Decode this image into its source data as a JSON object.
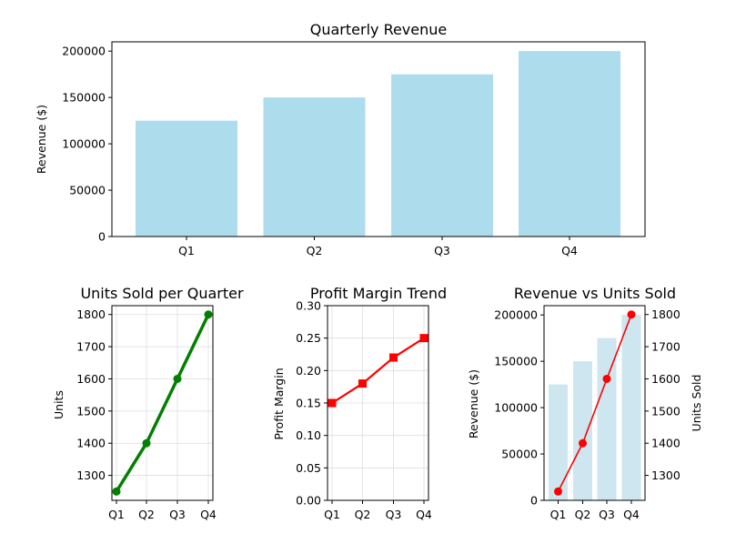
{
  "colors": {
    "bar_main": "#ADDDED",
    "bar_combo": "#CDE6EF",
    "units_line": "#008000",
    "margin_line": "#FF0000",
    "combo_line": "#FF0000",
    "left_axis_ticks": "#0000FF",
    "right_axis_label": "#FF0000",
    "grid": "#DDDDDD"
  },
  "chart_data": [
    {
      "id": "revenue",
      "type": "bar",
      "title": "Quarterly Revenue",
      "categories": [
        "Q1",
        "Q2",
        "Q3",
        "Q4"
      ],
      "values": [
        125000,
        150000,
        175000,
        200000
      ],
      "ylabel": "Revenue ($)",
      "xlabel": "",
      "ylim": [
        0,
        210000
      ],
      "yticks": [
        0,
        50000,
        100000,
        150000,
        200000
      ],
      "ytick_labels": [
        "0",
        "50000",
        "100000",
        "150000",
        "200000"
      ],
      "grid": false
    },
    {
      "id": "units",
      "type": "line",
      "title": "Units Sold per Quarter",
      "categories": [
        "Q1",
        "Q2",
        "Q3",
        "Q4"
      ],
      "values": [
        1250,
        1400,
        1600,
        1800
      ],
      "ylabel": "Units",
      "ylim": [
        1222.5,
        1827.5
      ],
      "yticks": [
        1300,
        1400,
        1500,
        1600,
        1700,
        1800
      ],
      "ytick_labels": [
        "1300",
        "1400",
        "1500",
        "1600",
        "1700",
        "1800"
      ],
      "marker": "circle",
      "grid": true
    },
    {
      "id": "margin",
      "type": "line",
      "title": "Profit Margin Trend",
      "categories": [
        "Q1",
        "Q2",
        "Q3",
        "Q4"
      ],
      "values": [
        0.15,
        0.18,
        0.22,
        0.25
      ],
      "ylabel": "Profit Margin",
      "ylim": [
        0,
        0.3
      ],
      "yticks": [
        0,
        0.05,
        0.1,
        0.15,
        0.2,
        0.25,
        0.3
      ],
      "ytick_labels": [
        "0.00",
        "0.05",
        "0.10",
        "0.15",
        "0.20",
        "0.25",
        "0.30"
      ],
      "marker": "square",
      "grid": true
    },
    {
      "id": "combo",
      "type": "bar+line",
      "title": "Revenue vs Units Sold",
      "categories": [
        "Q1",
        "Q2",
        "Q3",
        "Q4"
      ],
      "series": [
        {
          "name": "Revenue",
          "kind": "bar",
          "axis": "left",
          "values": [
            125000,
            150000,
            175000,
            200000
          ]
        },
        {
          "name": "Units Sold",
          "kind": "line",
          "axis": "right",
          "values": [
            1250,
            1400,
            1600,
            1800
          ]
        }
      ],
      "ylabel_left": "Revenue ($)",
      "ylabel_right": "Units Sold",
      "ylim_left": [
        0,
        210000
      ],
      "ylim_right": [
        1222.5,
        1827.5
      ],
      "yticks_left": [
        0,
        50000,
        100000,
        150000,
        200000
      ],
      "ytick_labels_left": [
        "0",
        "50000",
        "100000",
        "150000",
        "200000"
      ],
      "yticks_right": [
        1300,
        1400,
        1500,
        1600,
        1700,
        1800
      ],
      "ytick_labels_right": [
        "1300",
        "1400",
        "1500",
        "1600",
        "1700",
        "1800"
      ],
      "grid": false
    }
  ]
}
